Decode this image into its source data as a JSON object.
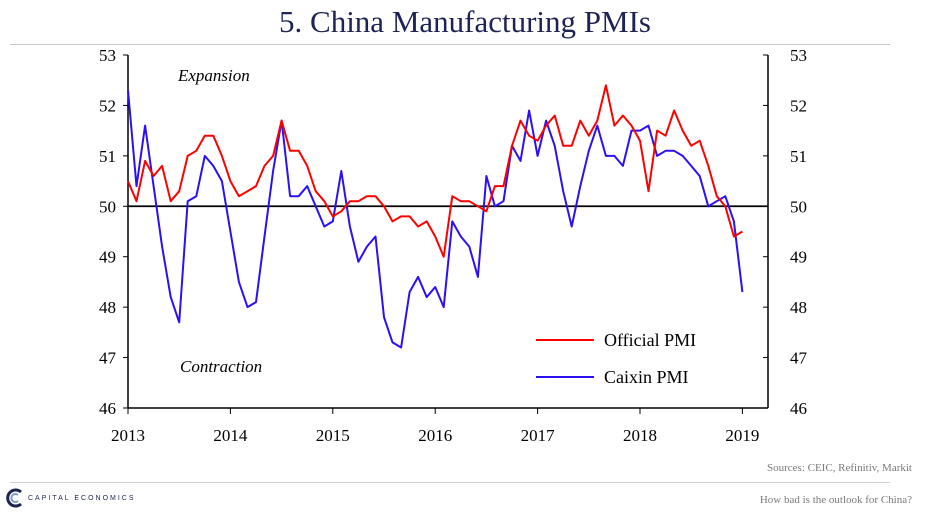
{
  "title": "5. China Manufacturing PMIs",
  "source": "Sources: CEIC, Refinitiv, Markit",
  "footer": {
    "logo_text": "CAPITAL ECONOMICS",
    "note": "How bad is the outlook for China?"
  },
  "colors": {
    "official": "#ff0000",
    "caixin": "#2b10f5",
    "title": "#1d2352"
  },
  "chart_data": {
    "type": "line",
    "title": "5. China Manufacturing PMIs",
    "xlim": [
      2013,
      2019.25
    ],
    "ylim": [
      46,
      53
    ],
    "x_ticks": [
      2013,
      2014,
      2015,
      2016,
      2017,
      2018,
      2019
    ],
    "x_tick_labels": [
      "2013",
      "2014",
      "2015",
      "2016",
      "2017",
      "2018",
      "2019"
    ],
    "y_ticks": [
      46,
      47,
      48,
      49,
      50,
      51,
      52,
      53
    ],
    "y_tick_labels": [
      "46",
      "47",
      "48",
      "49",
      "50",
      "51",
      "52",
      "53"
    ],
    "reference_line": 50,
    "annotations": [
      "Expansion",
      "Contraction"
    ],
    "legend_position": "lower-right",
    "series": [
      {
        "name": "Official PMI",
        "color": "#ff0000",
        "x_start": 2013.0,
        "x_step_months": 1,
        "values": [
          50.5,
          50.1,
          50.9,
          50.6,
          50.8,
          50.1,
          50.3,
          51.0,
          51.1,
          51.4,
          51.4,
          51.0,
          50.5,
          50.2,
          50.3,
          50.4,
          50.8,
          51.0,
          51.7,
          51.1,
          51.1,
          50.8,
          50.3,
          50.1,
          49.8,
          49.9,
          50.1,
          50.1,
          50.2,
          50.2,
          50.0,
          49.7,
          49.8,
          49.8,
          49.6,
          49.7,
          49.4,
          49.0,
          50.2,
          50.1,
          50.1,
          50.0,
          49.9,
          50.4,
          50.4,
          51.2,
          51.7,
          51.4,
          51.3,
          51.6,
          51.8,
          51.2,
          51.2,
          51.7,
          51.4,
          51.7,
          52.4,
          51.6,
          51.8,
          51.6,
          51.3,
          50.3,
          51.5,
          51.4,
          51.9,
          51.5,
          51.2,
          51.3,
          50.8,
          50.2,
          50.0,
          49.4,
          49.5
        ]
      },
      {
        "name": "Caixin PMI",
        "color": "#2b10f5",
        "x_start": 2013.0,
        "x_step_months": 1,
        "values": [
          52.3,
          50.4,
          51.6,
          50.4,
          49.2,
          48.2,
          47.7,
          50.1,
          50.2,
          51.0,
          50.8,
          50.5,
          49.5,
          48.5,
          48.0,
          48.1,
          49.4,
          50.7,
          51.7,
          50.2,
          50.2,
          50.4,
          50.0,
          49.6,
          49.7,
          50.7,
          49.6,
          48.9,
          49.2,
          49.4,
          47.8,
          47.3,
          47.2,
          48.3,
          48.6,
          48.2,
          48.4,
          48.0,
          49.7,
          49.4,
          49.2,
          48.6,
          50.6,
          50.0,
          50.1,
          51.2,
          50.9,
          51.9,
          51.0,
          51.7,
          51.2,
          50.3,
          49.6,
          50.4,
          51.1,
          51.6,
          51.0,
          51.0,
          50.8,
          51.5,
          51.5,
          51.6,
          51.0,
          51.1,
          51.1,
          51.0,
          50.8,
          50.6,
          50.0,
          50.1,
          50.2,
          49.7,
          48.3
        ]
      }
    ]
  }
}
